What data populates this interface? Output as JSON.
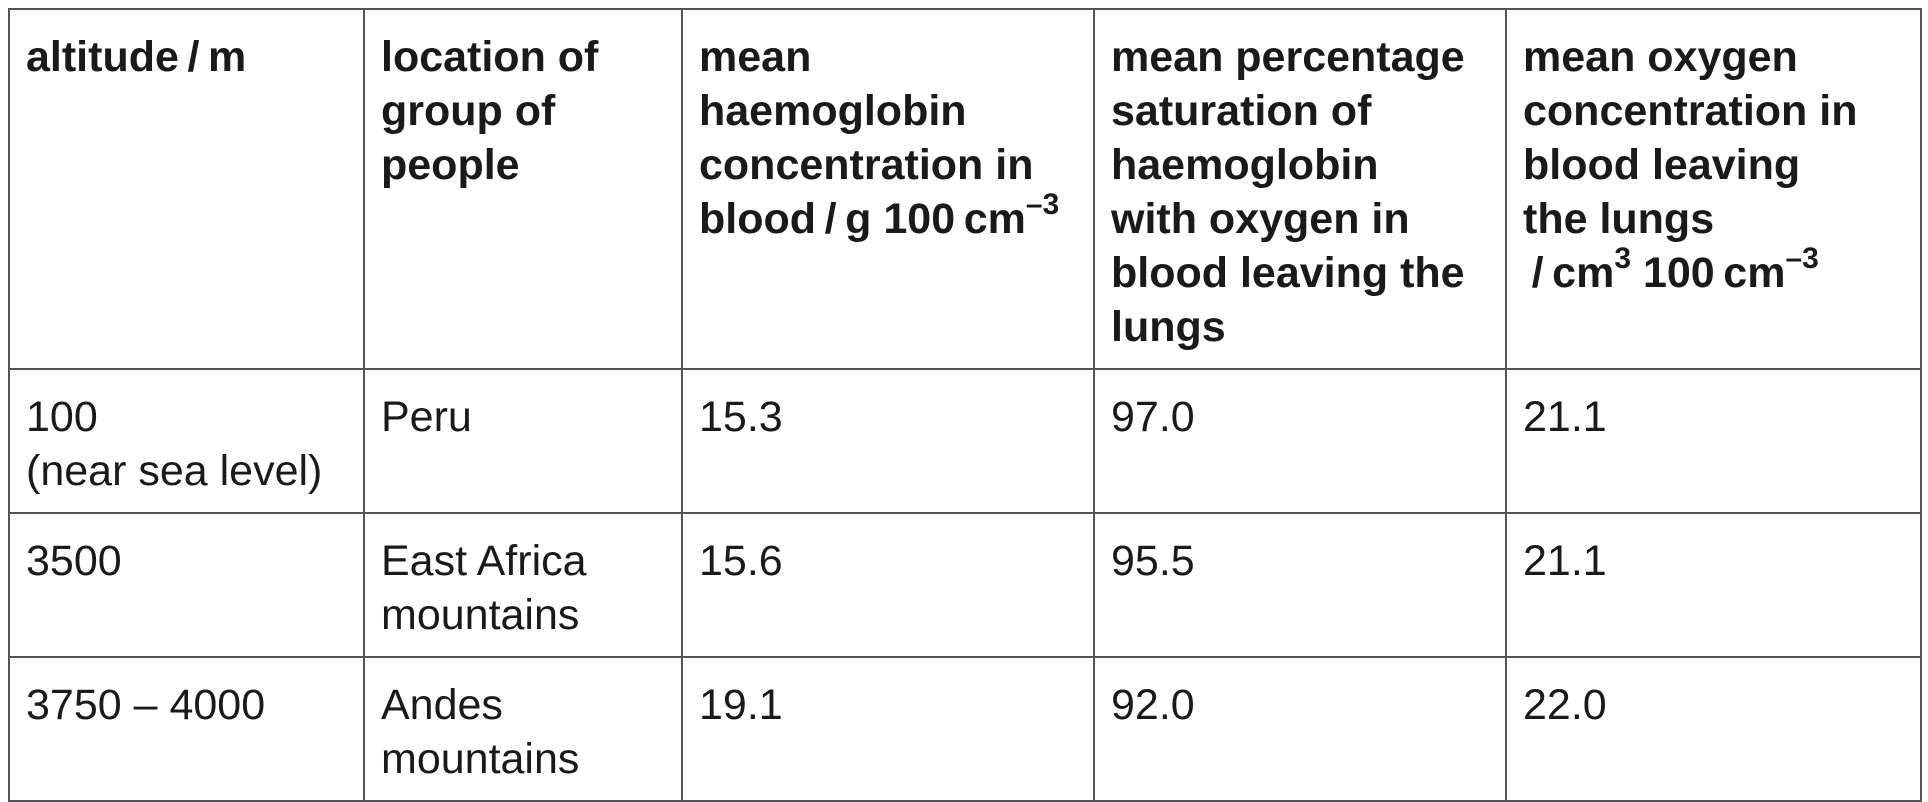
{
  "table": {
    "headers": [
      {
        "lines": [
          {
            "text": "altitude / m"
          }
        ]
      },
      {
        "lines": [
          {
            "text": "location of"
          },
          {
            "text": "group of"
          },
          {
            "text": "people"
          }
        ]
      },
      {
        "lines": [
          {
            "text": "mean"
          },
          {
            "text": "haemoglobin"
          },
          {
            "text": "concentration in"
          },
          {
            "text": "blood / g 100 cm",
            "sup": "–3"
          }
        ]
      },
      {
        "lines": [
          {
            "text": "mean percentage"
          },
          {
            "text": "saturation of"
          },
          {
            "text": "haemoglobin"
          },
          {
            "text": "with oxygen in"
          },
          {
            "text": "blood leaving the"
          },
          {
            "text": "lungs"
          }
        ]
      },
      {
        "lines": [
          {
            "text": "mean oxygen"
          },
          {
            "text": "concentration in"
          },
          {
            "text": "blood leaving"
          },
          {
            "text": "the lungs"
          },
          {
            "text": " / cm",
            "sup": "3",
            "text2": " 100 cm",
            "sup2": "–3"
          }
        ]
      }
    ],
    "rows": [
      [
        {
          "lines": [
            {
              "text": "100"
            },
            {
              "text": "(near sea level)"
            }
          ]
        },
        {
          "lines": [
            {
              "text": "Peru"
            }
          ]
        },
        {
          "lines": [
            {
              "text": "15.3"
            }
          ]
        },
        {
          "lines": [
            {
              "text": "97.0"
            }
          ]
        },
        {
          "lines": [
            {
              "text": "21.1"
            }
          ]
        }
      ],
      [
        {
          "lines": [
            {
              "text": "3500"
            }
          ]
        },
        {
          "lines": [
            {
              "text": "East Africa"
            },
            {
              "text": "mountains"
            }
          ]
        },
        {
          "lines": [
            {
              "text": "15.6"
            }
          ]
        },
        {
          "lines": [
            {
              "text": "95.5"
            }
          ]
        },
        {
          "lines": [
            {
              "text": "21.1"
            }
          ]
        }
      ],
      [
        {
          "lines": [
            {
              "text": "3750 – 4000"
            }
          ]
        },
        {
          "lines": [
            {
              "text": "Andes"
            },
            {
              "text": "mountains"
            }
          ]
        },
        {
          "lines": [
            {
              "text": "19.1"
            }
          ]
        },
        {
          "lines": [
            {
              "text": "92.0"
            }
          ]
        },
        {
          "lines": [
            {
              "text": "22.0"
            }
          ]
        }
      ]
    ]
  }
}
